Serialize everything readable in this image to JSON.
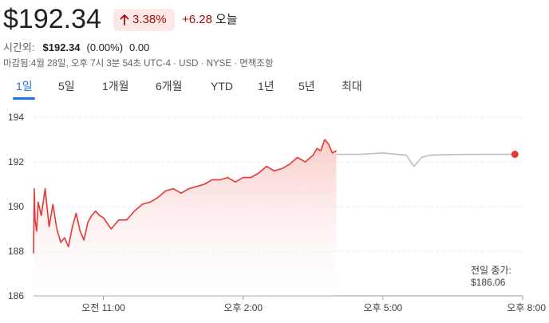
{
  "quote": {
    "price": "$192.34",
    "change_pct": "3.38%",
    "change_abs": "+6.28",
    "today_label": "오늘",
    "trend_color": "#a50e0e",
    "trend_icon": "arrow-up-icon"
  },
  "after_hours": {
    "label": "시간외:",
    "price": "$192.34",
    "pct": "(0.00%)",
    "change": "0.00"
  },
  "meta_line": "마감됨:4월 28일, 오후 7시 3분 54초 UTC-4 · USD · NYSE · 면책조항",
  "tabs": [
    {
      "label": "1일",
      "active": true
    },
    {
      "label": "5일",
      "active": false
    },
    {
      "label": "1개월",
      "active": false
    },
    {
      "label": "6개월",
      "active": false
    },
    {
      "label": "YTD",
      "active": false
    },
    {
      "label": "1년",
      "active": false
    },
    {
      "label": "5년",
      "active": false
    },
    {
      "label": "최대",
      "active": false
    }
  ],
  "previous_close": {
    "label": "전일 종가:",
    "value": "$186.06"
  },
  "chart_data": {
    "type": "line",
    "y_ticks": [
      "194",
      "192",
      "190",
      "188",
      "186"
    ],
    "x_ticks": [
      "오전 11:00",
      "오후 2:00",
      "오후 5:00",
      "오후 8:00"
    ],
    "ylim": [
      186,
      194
    ],
    "grid": true,
    "colors": {
      "regular": "#e53935",
      "after_hours": "#bdbdbd",
      "marker": "#e53935",
      "fill_top": "#f8c9c6"
    },
    "regular_session": {
      "x": [
        "09:30",
        "09:31",
        "09:32",
        "09:34",
        "09:36",
        "09:40",
        "09:45",
        "09:50",
        "09:55",
        "10:00",
        "10:05",
        "10:10",
        "10:15",
        "10:20",
        "10:25",
        "10:30",
        "10:35",
        "10:40",
        "10:45",
        "10:50",
        "10:55",
        "11:00",
        "11:10",
        "11:20",
        "11:30",
        "11:40",
        "11:50",
        "12:00",
        "12:10",
        "12:20",
        "12:30",
        "12:40",
        "12:50",
        "13:00",
        "13:10",
        "13:20",
        "13:30",
        "13:40",
        "13:50",
        "14:00",
        "14:10",
        "14:20",
        "14:30",
        "14:40",
        "14:50",
        "15:00",
        "15:10",
        "15:20",
        "15:30",
        "15:35",
        "15:40",
        "15:45",
        "15:50",
        "15:55",
        "16:00"
      ],
      "y": [
        187.9,
        190.8,
        189.4,
        188.9,
        190.2,
        189.6,
        190.8,
        189.1,
        190.1,
        189.0,
        188.4,
        188.6,
        188.2,
        189.1,
        189.7,
        188.9,
        188.5,
        189.3,
        189.6,
        189.8,
        189.6,
        189.5,
        189.0,
        189.4,
        189.4,
        189.8,
        190.1,
        190.2,
        190.4,
        190.7,
        190.8,
        190.6,
        190.8,
        190.9,
        191.0,
        191.2,
        191.2,
        191.3,
        191.1,
        191.3,
        191.3,
        191.5,
        191.8,
        191.6,
        191.7,
        191.9,
        192.2,
        192.0,
        192.3,
        192.6,
        192.5,
        193.0,
        192.8,
        192.4,
        192.5
      ]
    },
    "after_hours_session": {
      "x": [
        "16:00",
        "16:30",
        "17:00",
        "17:30",
        "17:40",
        "17:50",
        "18:00",
        "18:30",
        "19:00",
        "19:30",
        "19:50"
      ],
      "y": [
        192.34,
        192.34,
        192.4,
        192.3,
        191.8,
        192.2,
        192.3,
        192.33,
        192.34,
        192.34,
        192.34
      ]
    }
  }
}
